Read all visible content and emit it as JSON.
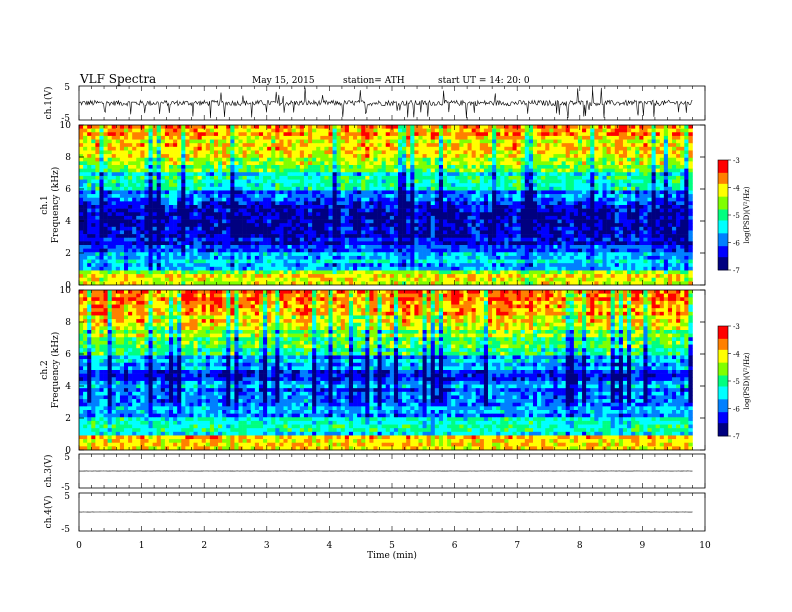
{
  "header": {
    "title": "VLF  Spectra",
    "date": "May 15, 2015",
    "station": "station= ATH",
    "start": "start  UT  =    14: 20: 0"
  },
  "colors": {
    "colormap": [
      "#000080",
      "#0000ff",
      "#0080ff",
      "#00ffff",
      "#00ff80",
      "#80ff00",
      "#ffff00",
      "#ff8000",
      "#ff0000",
      "#ffffff"
    ],
    "trace": "#000000",
    "frame": "#000000"
  },
  "chart_data": [
    {
      "type": "line",
      "name": "ch1-voltage",
      "ylabel": "ch.1(V)",
      "ylim": [
        -5,
        5
      ],
      "yticks": [
        "5",
        "-5"
      ],
      "xlim": [
        0,
        10
      ],
      "trace_extent_min": [
        0,
        9.8
      ],
      "description_values": {
        "baseline_v": 0.0,
        "typical_amplitude_v": 1.0,
        "spike_min_v": -4.5
      }
    },
    {
      "type": "heatmap",
      "name": "ch1-spectrogram",
      "ylabel_top": "ch.1",
      "ylabel": "Frequency  (kHz)",
      "ylim": [
        0,
        10
      ],
      "yticks": [
        "0",
        "2",
        "4",
        "6",
        "8",
        "10"
      ],
      "xlim": [
        0,
        10
      ],
      "data_extent_min": [
        0,
        9.8
      ],
      "colorbar": {
        "label": "log(PSD)(V²/Hz)",
        "range": [
          -7,
          -3
        ],
        "ticks": [
          "-3",
          "-4",
          "-5",
          "-6",
          "-7"
        ]
      },
      "psd_profile_log": [
        {
          "freq_khz": 0.5,
          "log_psd": -4.2
        },
        {
          "freq_khz": 1.5,
          "log_psd": -5.6
        },
        {
          "freq_khz": 2.5,
          "log_psd": -6.3
        },
        {
          "freq_khz": 3.5,
          "log_psd": -6.7
        },
        {
          "freq_khz": 4.5,
          "log_psd": -6.6
        },
        {
          "freq_khz": 5.5,
          "log_psd": -6.0
        },
        {
          "freq_khz": 6.5,
          "log_psd": -5.2
        },
        {
          "freq_khz": 7.5,
          "log_psd": -4.6
        },
        {
          "freq_khz": 8.5,
          "log_psd": -4.1
        },
        {
          "freq_khz": 9.5,
          "log_psd": -3.7
        }
      ]
    },
    {
      "type": "heatmap",
      "name": "ch2-spectrogram",
      "ylabel_top": "ch.2",
      "ylabel": "Frequency  (kHz)",
      "ylim": [
        0,
        10
      ],
      "yticks": [
        "0",
        "2",
        "4",
        "6",
        "8",
        "10"
      ],
      "xlim": [
        0,
        10
      ],
      "data_extent_min": [
        0,
        9.8
      ],
      "colorbar": {
        "label": "log(PSD)(V²/Hz)",
        "range": [
          -7,
          -3
        ],
        "ticks": [
          "-3",
          "-4",
          "-5",
          "-6",
          "-7"
        ]
      },
      "psd_profile_log": [
        {
          "freq_khz": 0.5,
          "log_psd": -4.0
        },
        {
          "freq_khz": 1.5,
          "log_psd": -5.2
        },
        {
          "freq_khz": 2.5,
          "log_psd": -5.7
        },
        {
          "freq_khz": 3.5,
          "log_psd": -5.9
        },
        {
          "freq_khz": 4.5,
          "log_psd": -6.1
        },
        {
          "freq_khz": 5.5,
          "log_psd": -5.7
        },
        {
          "freq_khz": 6.5,
          "log_psd": -5.0
        },
        {
          "freq_khz": 7.5,
          "log_psd": -4.5
        },
        {
          "freq_khz": 8.5,
          "log_psd": -4.0
        },
        {
          "freq_khz": 9.5,
          "log_psd": -3.6
        }
      ]
    },
    {
      "type": "line",
      "name": "ch3-voltage",
      "ylabel": "ch.3(V)",
      "ylim": [
        -5,
        5
      ],
      "yticks": [
        "5",
        "-5"
      ],
      "xlim": [
        0,
        10
      ],
      "trace_extent_min": [
        0,
        9.8
      ],
      "description_values": {
        "baseline_v": 0.0
      }
    },
    {
      "type": "line",
      "name": "ch4-voltage",
      "ylabel": "ch.4(V)",
      "ylim": [
        -5,
        5
      ],
      "yticks": [
        "5",
        "-5"
      ],
      "xlim": [
        0,
        10
      ],
      "trace_extent_min": [
        0,
        9.8
      ],
      "description_values": {
        "baseline_v": 0.0
      }
    }
  ],
  "xaxis": {
    "label": "Time  (min)",
    "ticks": [
      "0",
      "1",
      "2",
      "3",
      "4",
      "5",
      "6",
      "7",
      "8",
      "9",
      "10"
    ]
  }
}
